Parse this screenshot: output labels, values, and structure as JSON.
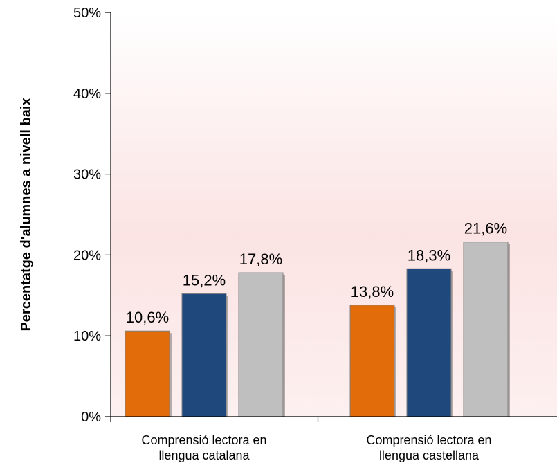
{
  "chart_data": {
    "type": "bar",
    "categories": [
      [
        "Comprensió lectora en",
        "llengua catalana"
      ],
      [
        "Comprensió lectora en",
        "llengua castellana"
      ]
    ],
    "series": [
      {
        "color": "#E36C0A",
        "values": [
          10.6,
          13.8
        ],
        "labels": [
          "10,6%",
          "13,8%"
        ]
      },
      {
        "color": "#1F497D",
        "values": [
          15.2,
          18.3
        ],
        "labels": [
          "15,2%",
          "18,3%"
        ]
      },
      {
        "color": "#BFBFBF",
        "values": [
          17.8,
          21.6
        ],
        "labels": [
          "17,8%",
          "21,6%"
        ]
      }
    ],
    "title": "",
    "xlabel": "",
    "ylabel": "Percentatge d'alumnes a nivell baix",
    "ylim": [
      0,
      50
    ],
    "yticks": [
      0,
      10,
      20,
      30,
      40,
      50
    ],
    "ytick_labels": [
      "0%",
      "10%",
      "20%",
      "30%",
      "40%",
      "50%"
    ],
    "grid": false,
    "legend": "none"
  }
}
